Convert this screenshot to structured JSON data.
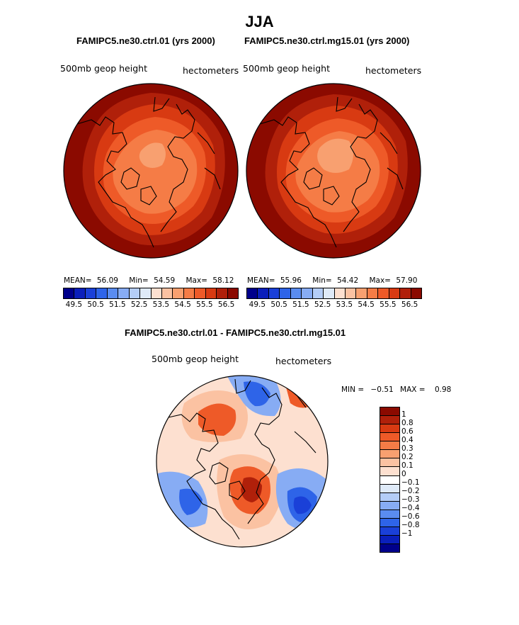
{
  "figure": {
    "title": "JJA"
  },
  "panels": [
    {
      "title": "FAMIPC5.ne30.ctrl.01 (yrs 2000)",
      "variable": "500mb geop height",
      "units": "hectometers",
      "mean_label": "MEAN=",
      "mean": "56.09",
      "min_label": "Min=",
      "min": "54.59",
      "max_label": "Max=",
      "max": "58.12"
    },
    {
      "title": "FAMIPC5.ne30.ctrl.mg15.01 (yrs 2000)",
      "variable": "500mb geop height",
      "units": "hectometers",
      "mean_label": "MEAN=",
      "mean": "55.96",
      "min_label": "Min=",
      "min": "54.42",
      "max_label": "Max=",
      "max": "57.90"
    }
  ],
  "colorbar_top": {
    "colors": [
      "#00008b",
      "#0a1fbb",
      "#1a40d8",
      "#2e64e8",
      "#5a8cf0",
      "#87acf4",
      "#b4cdf7",
      "#dfeaf8",
      "#fde0d0",
      "#fbc2a2",
      "#f8a070",
      "#f57c46",
      "#ee5a28",
      "#d83a12",
      "#b0200a",
      "#8b0a00"
    ],
    "tick_labels": [
      "49.5",
      "50.5",
      "51.5",
      "52.5",
      "53.5",
      "54.5",
      "55.5",
      "56.5"
    ]
  },
  "difference": {
    "title": "FAMIPC5.ne30.ctrl.01 - FAMIPC5.ne30.ctrl.mg15.01",
    "variable": "500mb geop height",
    "units": "hectometers",
    "min_label": "MIN =",
    "min": "−0.51",
    "max_label": "MAX =",
    "max": "0.98",
    "colorbar": {
      "colors": [
        "#8b0a00",
        "#b0200a",
        "#d83a12",
        "#ee5a28",
        "#f57c46",
        "#f8a070",
        "#fbc2a2",
        "#fde0d0",
        "#ffffff",
        "#dfeaf8",
        "#b4cdf7",
        "#87acf4",
        "#5a8cf0",
        "#2e64e8",
        "#1a40d8",
        "#0a1fbb",
        "#00008b"
      ],
      "tick_labels": [
        "1",
        "0.8",
        "0.6",
        "0.4",
        "0.3",
        "0.2",
        "0.1",
        "0",
        "−0.1",
        "−0.2",
        "−0.3",
        "−0.4",
        "−0.6",
        "−0.8",
        "−1"
      ]
    }
  },
  "map_colors": {
    "outer": "#8b0a00",
    "ring1": "#b0200a",
    "ring2": "#d83a12",
    "ring3": "#ee5a28",
    "ring4": "#f57c46",
    "ring5": "#f8a070",
    "coast": "#000000",
    "diff_neg": "#2e64e8",
    "diff_neg_light": "#87acf4",
    "diff_pos": "#ee5a28",
    "diff_pos_light": "#fbc2a2"
  }
}
